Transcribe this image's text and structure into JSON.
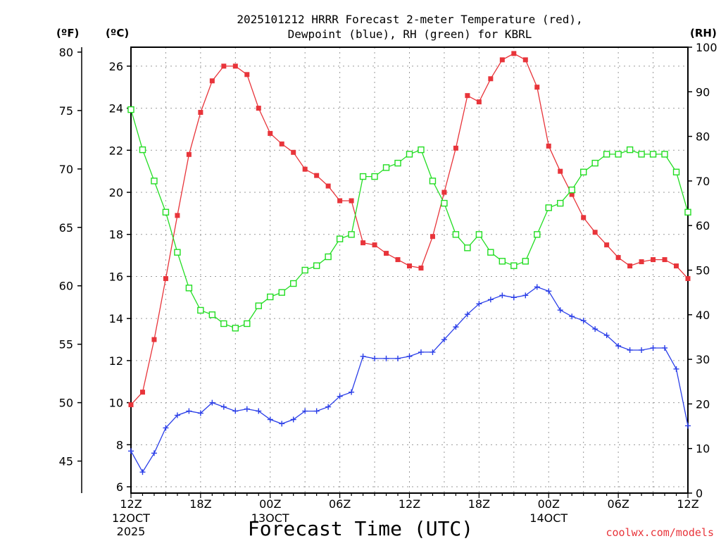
{
  "chart_data": {
    "type": "line",
    "title_line1": "2025101212 HRRR Forecast 2-meter Temperature (red),",
    "title_line2": "Dewpoint (blue), RH (green) for KBRL",
    "xlabel": "Forecast Time (UTC)",
    "credit": "coolwx.com/models",
    "unit_f": "(ºF)",
    "unit_c": "(ºC)",
    "unit_rh": "(RH)",
    "hours": [
      0,
      1,
      2,
      3,
      4,
      5,
      6,
      7,
      8,
      9,
      10,
      11,
      12,
      13,
      14,
      15,
      16,
      17,
      18,
      19,
      20,
      21,
      22,
      23,
      24,
      25,
      26,
      27,
      28,
      29,
      30,
      31,
      32,
      33,
      34,
      35,
      36,
      37,
      38,
      39,
      40,
      41,
      42,
      43,
      44,
      45,
      46,
      47,
      48
    ],
    "xlim": [
      0,
      48
    ],
    "x_ticks": [
      {
        "h": 0,
        "label": "12Z",
        "sub1": "12OCT",
        "sub2": "2025"
      },
      {
        "h": 6,
        "label": "18Z",
        "sub1": "",
        "sub2": ""
      },
      {
        "h": 12,
        "label": "00Z",
        "sub1": "13OCT",
        "sub2": ""
      },
      {
        "h": 18,
        "label": "06Z",
        "sub1": "",
        "sub2": ""
      },
      {
        "h": 24,
        "label": "12Z",
        "sub1": "",
        "sub2": ""
      },
      {
        "h": 30,
        "label": "18Z",
        "sub1": "",
        "sub2": ""
      },
      {
        "h": 36,
        "label": "00Z",
        "sub1": "14OCT",
        "sub2": ""
      },
      {
        "h": 42,
        "label": "06Z",
        "sub1": "",
        "sub2": ""
      },
      {
        "h": 48,
        "label": "12Z",
        "sub1": "",
        "sub2": ""
      }
    ],
    "c_axis": {
      "lim": [
        5.7,
        26.9
      ],
      "ticks": [
        "6",
        "8",
        "10",
        "12",
        "14",
        "16",
        "18",
        "20",
        "22",
        "24",
        "26"
      ]
    },
    "f_axis": {
      "ticks": [
        "45",
        "50",
        "55",
        "60",
        "65",
        "70",
        "75",
        "80"
      ]
    },
    "rh_axis": {
      "lim": [
        0,
        100
      ],
      "ticks": [
        "0",
        "10",
        "20",
        "30",
        "40",
        "50",
        "60",
        "70",
        "80",
        "90",
        "100"
      ]
    },
    "grid": true,
    "series": [
      {
        "key": "temperature",
        "axis": "c",
        "color": "#e8343a",
        "marker": "filled-square",
        "values": [
          9.9,
          10.5,
          13.0,
          15.9,
          18.9,
          21.8,
          23.8,
          25.3,
          26.0,
          26.0,
          25.6,
          24.0,
          22.8,
          22.3,
          21.9,
          21.1,
          20.8,
          20.3,
          19.6,
          19.6,
          17.6,
          17.5,
          17.1,
          16.8,
          16.5,
          16.4,
          17.9,
          20.0,
          22.1,
          24.6,
          24.3,
          25.4,
          26.3,
          26.6,
          26.3,
          25.0,
          22.2,
          21.0,
          19.9,
          18.8,
          18.1,
          17.5,
          16.9,
          16.5,
          16.7,
          16.8,
          16.8,
          16.5,
          15.9
        ]
      },
      {
        "key": "dewpoint",
        "axis": "c",
        "color": "#2a3ee8",
        "marker": "plus",
        "values": [
          7.7,
          6.7,
          7.6,
          8.8,
          9.4,
          9.6,
          9.5,
          10.0,
          9.8,
          9.6,
          9.7,
          9.6,
          9.2,
          9.0,
          9.2,
          9.6,
          9.6,
          9.8,
          10.3,
          10.5,
          12.2,
          12.1,
          12.1,
          12.1,
          12.2,
          12.4,
          12.4,
          13.0,
          13.6,
          14.2,
          14.7,
          14.9,
          15.1,
          15.0,
          15.1,
          15.5,
          15.3,
          14.4,
          14.1,
          13.9,
          13.5,
          13.2,
          12.7,
          12.5,
          12.5,
          12.6,
          12.6,
          11.6,
          8.9
        ]
      },
      {
        "key": "rh",
        "axis": "rh",
        "color": "#22dd22",
        "marker": "open-square",
        "values": [
          86,
          77,
          70,
          63,
          54,
          46,
          41,
          40,
          38,
          37,
          38,
          42,
          44,
          45,
          47,
          50,
          51,
          53,
          57,
          58,
          71,
          71,
          73,
          74,
          76,
          77,
          70,
          65,
          58,
          55,
          58,
          54,
          52,
          51,
          52,
          58,
          64,
          65,
          68,
          72,
          74,
          76,
          76,
          77,
          76,
          76,
          76,
          72,
          63
        ]
      }
    ]
  }
}
